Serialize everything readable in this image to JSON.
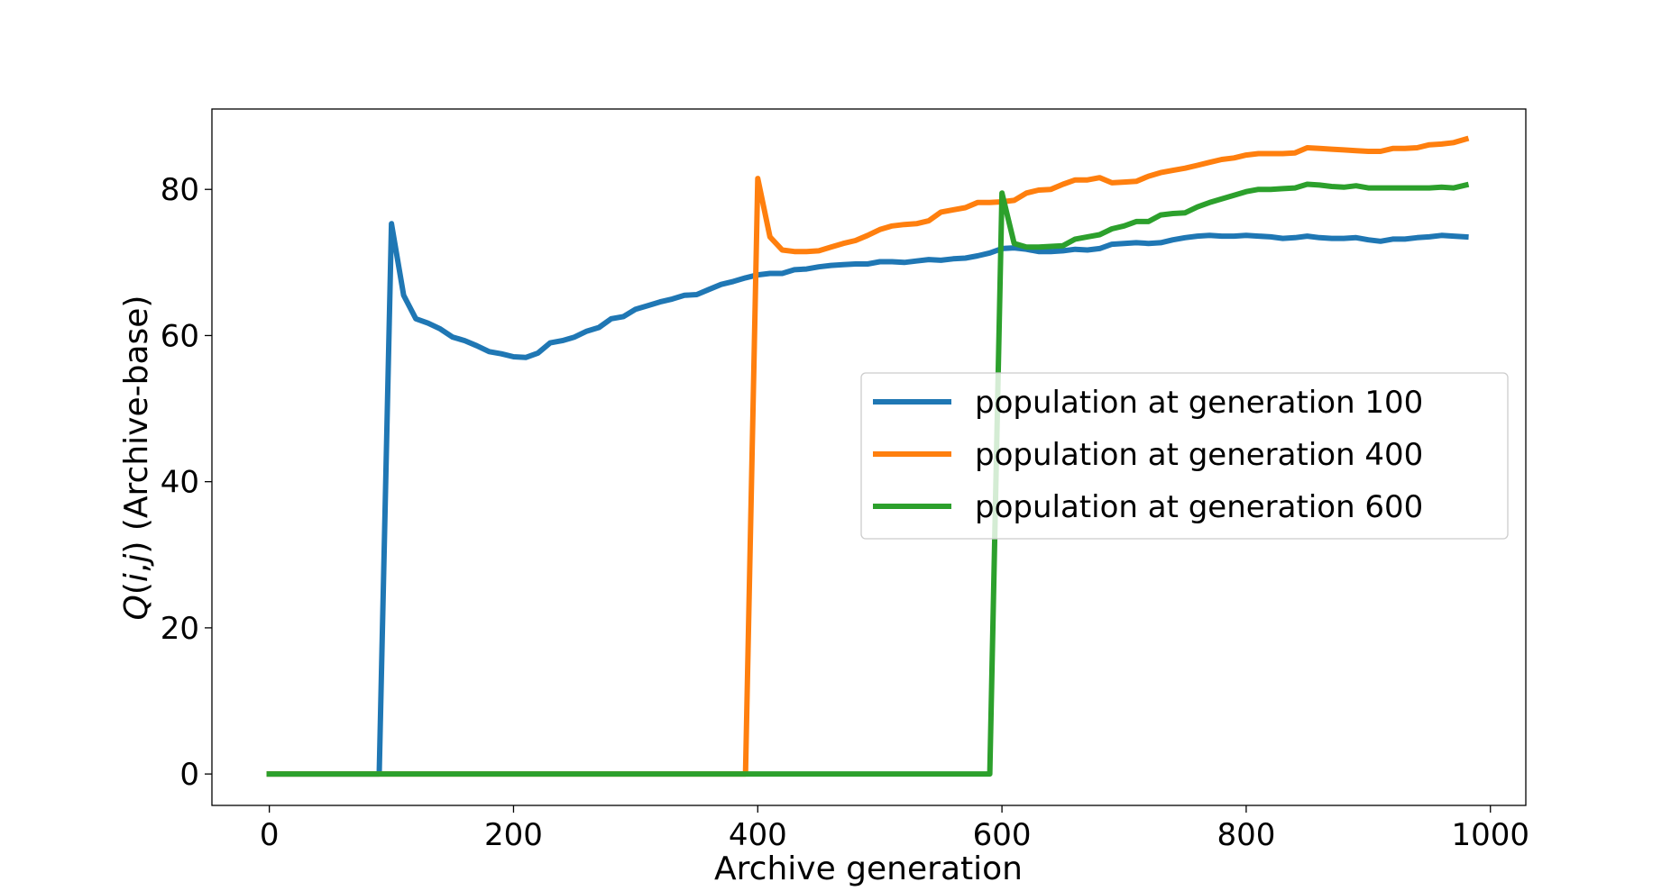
{
  "chart_data": {
    "type": "line",
    "title": "",
    "xlabel": "Archive generation",
    "ylabel_parts": [
      "Q",
      "(",
      "i",
      ",",
      "j",
      ")",
      " (Archive-base)"
    ],
    "xlim": [
      -47,
      1029
    ],
    "ylim": [
      -4.3,
      91
    ],
    "xticks": [
      0,
      200,
      400,
      600,
      800,
      1000
    ],
    "xtick_labels": [
      "0",
      "200",
      "400",
      "600",
      "800",
      "1000"
    ],
    "yticks": [
      0,
      20,
      40,
      60,
      80
    ],
    "ytick_labels": [
      "0",
      "20",
      "40",
      "60",
      "80"
    ],
    "grid": false,
    "legend_position": "center-right",
    "series": [
      {
        "name": "population at generation 100",
        "color": "#1f77b4",
        "x": [
          0,
          90,
          100,
          110,
          120,
          130,
          140,
          150,
          160,
          170,
          180,
          190,
          200,
          210,
          220,
          230,
          240,
          250,
          260,
          270,
          280,
          290,
          300,
          310,
          320,
          330,
          340,
          350,
          360,
          370,
          380,
          390,
          400,
          410,
          420,
          430,
          440,
          450,
          460,
          470,
          480,
          490,
          500,
          510,
          520,
          530,
          540,
          550,
          560,
          570,
          580,
          590,
          600,
          610,
          620,
          630,
          640,
          650,
          660,
          670,
          680,
          690,
          700,
          710,
          720,
          730,
          740,
          750,
          760,
          770,
          780,
          790,
          800,
          810,
          820,
          830,
          840,
          850,
          860,
          870,
          880,
          890,
          900,
          910,
          920,
          930,
          940,
          950,
          960,
          970,
          980
        ],
        "y": [
          0,
          0,
          75.3,
          65.5,
          62.3,
          61.7,
          60.9,
          59.8,
          59.3,
          58.6,
          57.8,
          57.5,
          57.1,
          57.0,
          57.6,
          59.0,
          59.3,
          59.8,
          60.6,
          61.1,
          62.3,
          62.6,
          63.6,
          64.1,
          64.6,
          65.0,
          65.5,
          65.6,
          66.3,
          67.0,
          67.4,
          67.9,
          68.3,
          68.5,
          68.5,
          69.0,
          69.1,
          69.4,
          69.6,
          69.7,
          69.8,
          69.8,
          70.1,
          70.1,
          70.0,
          70.2,
          70.4,
          70.3,
          70.5,
          70.6,
          70.9,
          71.3,
          71.9,
          72.0,
          71.8,
          71.5,
          71.5,
          71.6,
          71.8,
          71.7,
          71.9,
          72.5,
          72.6,
          72.7,
          72.6,
          72.7,
          73.1,
          73.4,
          73.6,
          73.7,
          73.6,
          73.6,
          73.7,
          73.6,
          73.5,
          73.3,
          73.4,
          73.6,
          73.4,
          73.3,
          73.3,
          73.4,
          73.1,
          72.9,
          73.2,
          73.2,
          73.4,
          73.5,
          73.7,
          73.6,
          73.5
        ]
      },
      {
        "name": "population at generation 400",
        "color": "#ff7f0e",
        "x": [
          0,
          390,
          400,
          410,
          420,
          430,
          440,
          450,
          460,
          470,
          480,
          490,
          500,
          510,
          520,
          530,
          540,
          550,
          560,
          570,
          580,
          590,
          600,
          610,
          620,
          630,
          640,
          650,
          660,
          670,
          680,
          690,
          700,
          710,
          720,
          730,
          740,
          750,
          760,
          770,
          780,
          790,
          800,
          810,
          820,
          830,
          840,
          850,
          860,
          870,
          880,
          890,
          900,
          910,
          920,
          930,
          940,
          950,
          960,
          970,
          980
        ],
        "y": [
          0,
          0,
          81.5,
          73.5,
          71.7,
          71.5,
          71.5,
          71.6,
          72.1,
          72.6,
          73.0,
          73.7,
          74.5,
          75.0,
          75.2,
          75.3,
          75.7,
          76.9,
          77.2,
          77.5,
          78.2,
          78.2,
          78.3,
          78.5,
          79.5,
          79.9,
          80.0,
          80.7,
          81.3,
          81.3,
          81.6,
          80.9,
          81.0,
          81.1,
          81.8,
          82.3,
          82.6,
          82.9,
          83.3,
          83.7,
          84.1,
          84.3,
          84.7,
          84.9,
          84.9,
          84.9,
          85.0,
          85.7,
          85.6,
          85.5,
          85.4,
          85.3,
          85.2,
          85.2,
          85.6,
          85.6,
          85.7,
          86.1,
          86.2,
          86.4,
          86.9
        ]
      },
      {
        "name": "population at generation 600",
        "color": "#2ca02c",
        "x": [
          0,
          590,
          600,
          610,
          620,
          630,
          640,
          650,
          660,
          670,
          680,
          690,
          700,
          710,
          720,
          730,
          740,
          750,
          760,
          770,
          780,
          790,
          800,
          810,
          820,
          830,
          840,
          850,
          860,
          870,
          880,
          890,
          900,
          910,
          920,
          930,
          940,
          950,
          960,
          970,
          980
        ],
        "y": [
          0,
          0,
          79.5,
          72.6,
          72.1,
          72.1,
          72.2,
          72.3,
          73.2,
          73.5,
          73.8,
          74.6,
          75.0,
          75.6,
          75.6,
          76.5,
          76.7,
          76.8,
          77.6,
          78.2,
          78.7,
          79.2,
          79.7,
          80.0,
          80.0,
          80.1,
          80.2,
          80.7,
          80.6,
          80.4,
          80.3,
          80.5,
          80.2,
          80.2,
          80.2,
          80.2,
          80.2,
          80.2,
          80.3,
          80.2,
          80.6
        ]
      }
    ]
  }
}
